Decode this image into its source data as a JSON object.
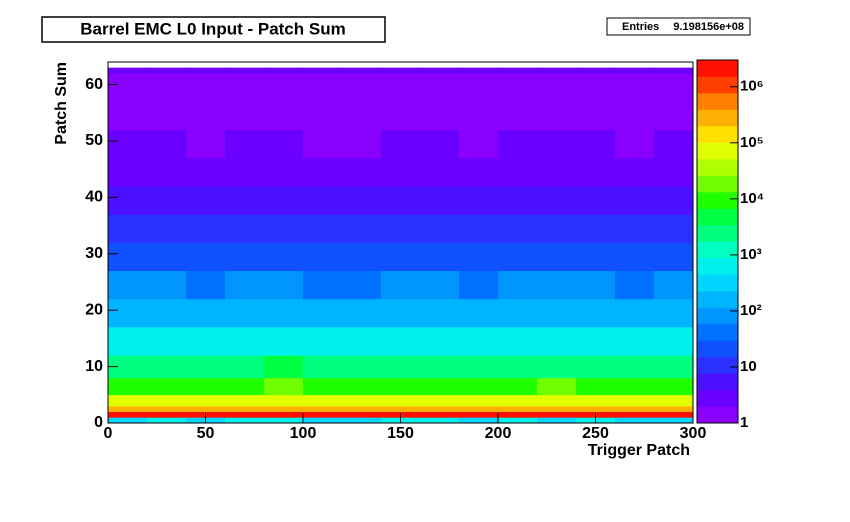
{
  "chart_data": {
    "type": "heatmap",
    "title": "Barrel EMC L0 Input - Patch Sum",
    "stats": {
      "label": "Entries",
      "value": 919815600,
      "value_label": "9.198156e+08"
    },
    "xlabel": "Trigger Patch",
    "ylabel": "Patch Sum",
    "xbins": [
      0,
      20,
      40,
      60,
      80,
      100,
      120,
      140,
      160,
      180,
      200,
      220,
      240,
      260,
      280,
      300
    ],
    "ybins": [
      0,
      1,
      2,
      3,
      5,
      8,
      12,
      17,
      22,
      27,
      32,
      37,
      42,
      47,
      52,
      57,
      62,
      63
    ],
    "values": [
      [
        400,
        600,
        300,
        500,
        800,
        400,
        300,
        700,
        500,
        400,
        600,
        300,
        500,
        400,
        350
      ],
      [
        2000000,
        2100000,
        1900000,
        2000000,
        2200000,
        2000000,
        1800000,
        2000000,
        2100000,
        1900000,
        2000000,
        2200000,
        2000000,
        1900000,
        2000000
      ],
      [
        300000,
        320000,
        280000,
        310000,
        330000,
        290000,
        270000,
        300000,
        320000,
        290000,
        310000,
        330000,
        300000,
        280000,
        300000
      ],
      [
        60000,
        65000,
        55000,
        62000,
        68000,
        58000,
        52000,
        60000,
        64000,
        57000,
        61000,
        66000,
        59000,
        55000,
        60000
      ],
      [
        12000,
        13000,
        11000,
        12500,
        14000,
        11500,
        10000,
        12000,
        13000,
        11000,
        12000,
        13500,
        11800,
        11000,
        12000
      ],
      [
        3000,
        3300,
        2700,
        3100,
        3500,
        2900,
        2500,
        3000,
        3200,
        2800,
        3000,
        3400,
        2900,
        2700,
        3000
      ],
      [
        600,
        650,
        550,
        620,
        700,
        580,
        500,
        600,
        640,
        560,
        610,
        680,
        590,
        540,
        600
      ],
      [
        180,
        200,
        160,
        190,
        210,
        170,
        150,
        180,
        195,
        165,
        185,
        205,
        175,
        160,
        180
      ],
      [
        60,
        65,
        55,
        62,
        70,
        58,
        50,
        60,
        64,
        56,
        61,
        68,
        59,
        54,
        60
      ],
      [
        25,
        27,
        22,
        26,
        29,
        24,
        20,
        25,
        27,
        23,
        25,
        28,
        24,
        22,
        25
      ],
      [
        10,
        11,
        9,
        10,
        12,
        9,
        8,
        10,
        11,
        9,
        10,
        11,
        10,
        9,
        10
      ],
      [
        5,
        5.5,
        4.5,
        5,
        6,
        4.5,
        4,
        5,
        5.5,
        4.5,
        5,
        5.5,
        5,
        4.5,
        5
      ],
      [
        3,
        3.2,
        2.8,
        3,
        3.5,
        2.8,
        2.5,
        3,
        3.2,
        2.8,
        3,
        3.3,
        3,
        2.8,
        3
      ],
      [
        2,
        2.1,
        1.9,
        2,
        2.3,
        1.9,
        1.7,
        2,
        2.1,
        1.9,
        2,
        2.2,
        2,
        1.8,
        2
      ],
      [
        1.5,
        1.6,
        1.4,
        1.5,
        1.7,
        1.4,
        1.3,
        1.5,
        1.6,
        1.4,
        1.5,
        1.6,
        1.5,
        1.4,
        1.5
      ],
      [
        1.2,
        1.2,
        1.1,
        1.2,
        1.3,
        1.1,
        1.1,
        1.2,
        1.2,
        1.1,
        1.2,
        1.3,
        1.2,
        1.1,
        1.2
      ],
      [
        2,
        2,
        2,
        2,
        2,
        2,
        2,
        2,
        2,
        2,
        2,
        2,
        2,
        2,
        2
      ]
    ],
    "xlim": [
      0,
      300
    ],
    "xticks": [
      0,
      50,
      100,
      150,
      200,
      250,
      300
    ],
    "ylim": [
      0,
      64
    ],
    "yticks": [
      0,
      10,
      20,
      30,
      40,
      50,
      60
    ],
    "zlim": [
      1,
      3000000
    ],
    "zlog": true,
    "zticks": [
      1,
      10,
      {
        "value": 100,
        "label": "10²"
      },
      {
        "value": 1000,
        "label": "10³"
      },
      {
        "value": 10000,
        "label": "10⁴"
      },
      {
        "value": 100000,
        "label": "10⁵"
      },
      {
        "value": 1000000,
        "label": "10⁶"
      }
    ],
    "colorscale": [
      "#8a00ff",
      "#6a00ff",
      "#4a10ff",
      "#2a30ff",
      "#1050ff",
      "#0070ff",
      "#0095ff",
      "#00b5ff",
      "#00d5ff",
      "#00f0f0",
      "#00ffc0",
      "#00ff80",
      "#00ff40",
      "#20ff00",
      "#70ff00",
      "#b0ff00",
      "#e0ff00",
      "#ffe000",
      "#ffb000",
      "#ff8000",
      "#ff4000",
      "#ff1000"
    ]
  }
}
